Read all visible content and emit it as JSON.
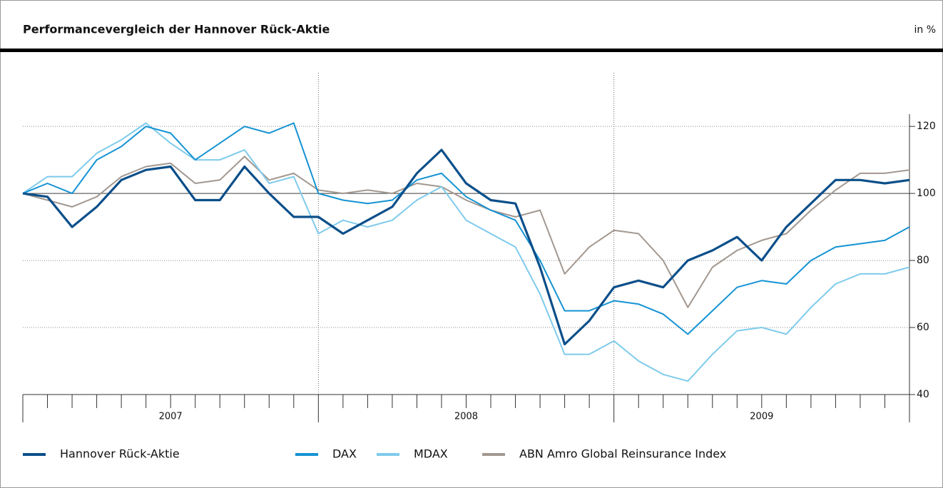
{
  "chart_data": {
    "type": "line",
    "title": "Performancevergleich der Hannover Rück-Aktie",
    "unit_label": "in %",
    "period_labels": [
      "2007",
      "2008",
      "2009"
    ],
    "ylim": [
      40,
      136
    ],
    "yticks": [
      40,
      60,
      80,
      100,
      120
    ],
    "baseline": 100,
    "grid": true,
    "series": [
      {
        "name": "Hannover Rück-Aktie",
        "color": "#0b4f8a",
        "width": 3.2,
        "values": [
          100,
          99,
          90,
          96,
          104,
          107,
          108,
          98,
          98,
          108,
          100,
          93,
          93,
          88,
          92,
          96,
          106,
          113,
          103,
          98,
          97,
          78,
          55,
          62,
          72,
          74,
          72,
          80,
          83,
          87,
          80,
          90,
          97,
          104,
          104,
          103,
          104
        ]
      },
      {
        "name": "DAX",
        "color": "#1593d3",
        "width": 2,
        "values": [
          100,
          103,
          100,
          110,
          114,
          120,
          118,
          110,
          115,
          120,
          118,
          121,
          100,
          98,
          97,
          98,
          104,
          106,
          99,
          95,
          92,
          80,
          65,
          65,
          68,
          67,
          64,
          58,
          65,
          72,
          74,
          73,
          80,
          84,
          85,
          86,
          90
        ]
      },
      {
        "name": "MDAX",
        "color": "#7fcbec",
        "width": 2,
        "values": [
          100,
          105,
          105,
          112,
          116,
          121,
          115,
          110,
          110,
          113,
          103,
          105,
          88,
          92,
          90,
          92,
          98,
          102,
          92,
          88,
          84,
          70,
          52,
          52,
          56,
          50,
          46,
          44,
          52,
          59,
          60,
          58,
          66,
          73,
          76,
          76,
          78
        ]
      },
      {
        "name": "ABN Amro Global Reinsurance Index",
        "color": "#a29890",
        "width": 2,
        "values": [
          100,
          98,
          96,
          99,
          105,
          108,
          109,
          103,
          104,
          111,
          104,
          106,
          101,
          100,
          101,
          100,
          103,
          102,
          98,
          95,
          93,
          95,
          76,
          84,
          89,
          88,
          80,
          66,
          78,
          83,
          86,
          88,
          95,
          101,
          106,
          106,
          107
        ]
      }
    ]
  }
}
